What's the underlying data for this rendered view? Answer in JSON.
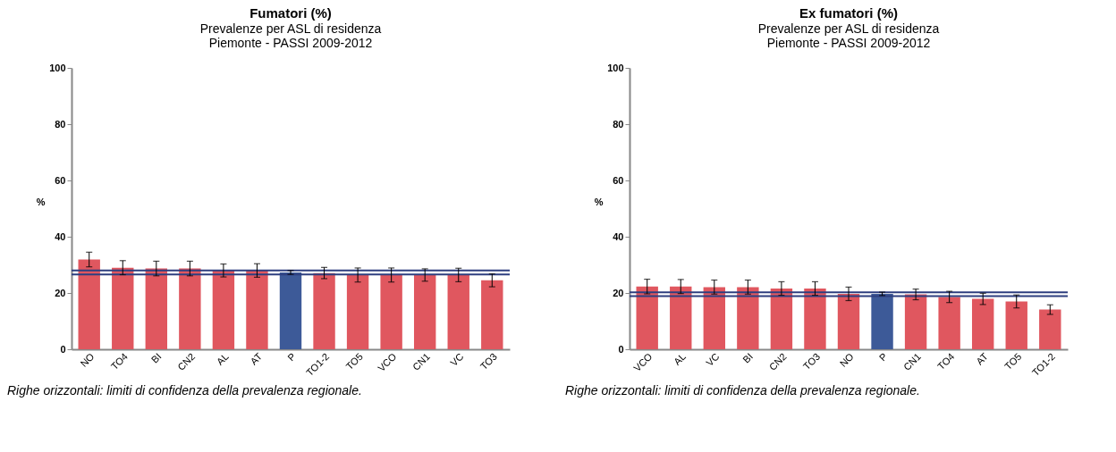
{
  "chart_data": [
    {
      "type": "bar",
      "title": "Fumatori (%)",
      "subtitle": "Prevalenze per ASL di residenza\nPiemonte - PASSI 2009-2012",
      "ylabel": "%",
      "categories": [
        "NO",
        "TO4",
        "BI",
        "CN2",
        "AL",
        "AT",
        "P",
        "TO1-2",
        "TO5",
        "VCO",
        "CN1",
        "VC",
        "TO3"
      ],
      "values": [
        31.9,
        29.0,
        28.7,
        28.7,
        28.0,
        28.0,
        27.3,
        27.1,
        26.4,
        26.4,
        26.4,
        26.4,
        24.5
      ],
      "errors": [
        2.6,
        2.5,
        2.6,
        2.6,
        2.3,
        2.4,
        0.7,
        2.0,
        2.5,
        2.5,
        2.2,
        2.4,
        2.3
      ],
      "colors": [
        "#e0575f",
        "#e0575f",
        "#e0575f",
        "#e0575f",
        "#e0575f",
        "#e0575f",
        "#3d5a98",
        "#e0575f",
        "#e0575f",
        "#e0575f",
        "#e0575f",
        "#e0575f",
        "#e0575f"
      ],
      "ylim": [
        0,
        100
      ],
      "yticks": [
        0,
        20,
        40,
        60,
        80,
        100
      ],
      "ref_lines": [
        {
          "axis": "y",
          "value": 28.0,
          "color": "#2e3f7f"
        },
        {
          "axis": "y",
          "value": 26.6,
          "color": "#2e3f7f"
        }
      ],
      "annotations": [
        "Righe orizzontali: limiti di confidenza della prevalenza regionale."
      ]
    },
    {
      "type": "bar",
      "title": "Ex fumatori (%)",
      "subtitle": "Prevalenze per ASL di residenza\nPiemonte - PASSI 2009-2012",
      "ylabel": "%",
      "categories": [
        "VCO",
        "AL",
        "VC",
        "BI",
        "CN2",
        "TO3",
        "NO",
        "P",
        "CN1",
        "TO4",
        "AT",
        "TO5",
        "TO1-2"
      ],
      "values": [
        22.3,
        22.3,
        22.1,
        22.1,
        21.6,
        21.6,
        19.7,
        19.7,
        19.5,
        18.6,
        17.9,
        17.0,
        14.1
      ],
      "errors": [
        2.6,
        2.5,
        2.5,
        2.5,
        2.4,
        2.4,
        2.4,
        0.6,
        1.9,
        2.0,
        2.0,
        2.3,
        1.7
      ],
      "colors": [
        "#e0575f",
        "#e0575f",
        "#e0575f",
        "#e0575f",
        "#e0575f",
        "#e0575f",
        "#e0575f",
        "#3d5a98",
        "#e0575f",
        "#e0575f",
        "#e0575f",
        "#e0575f",
        "#e0575f"
      ],
      "ylim": [
        0,
        100
      ],
      "yticks": [
        0,
        20,
        40,
        60,
        80,
        100
      ],
      "ref_lines": [
        {
          "axis": "y",
          "value": 20.2,
          "color": "#2e3f7f"
        },
        {
          "axis": "y",
          "value": 18.9,
          "color": "#2e3f7f"
        }
      ],
      "annotations": [
        "Righe orizzontali: limiti di confidenza della prevalenza regionale."
      ]
    }
  ]
}
